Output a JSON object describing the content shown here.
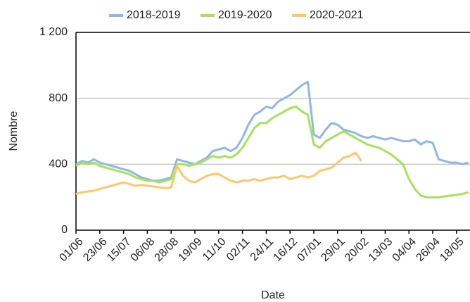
{
  "chart_data": {
    "type": "line",
    "x_label": "Date",
    "y_label": "Nombre",
    "categories": [
      "01/06",
      null,
      null,
      null,
      "23/06",
      null,
      null,
      null,
      "15/07",
      null,
      null,
      null,
      "06/08",
      null,
      null,
      null,
      "28/08",
      null,
      null,
      null,
      "19/09",
      null,
      null,
      null,
      "11/10",
      null,
      null,
      null,
      "02/11",
      null,
      null,
      null,
      "24/11",
      null,
      null,
      null,
      "16/12",
      null,
      null,
      null,
      "07/01",
      null,
      null,
      null,
      "29/01",
      null,
      null,
      null,
      "20/02",
      null,
      null,
      null,
      "13/03",
      null,
      null,
      null,
      "04/04",
      null,
      null,
      null,
      "26/04",
      null,
      null,
      null,
      "18/05",
      null,
      null
    ],
    "series": [
      {
        "name": "2018-2019",
        "color": "#8fb7ea",
        "values": [
          400,
          420,
          410,
          430,
          410,
          400,
          390,
          380,
          370,
          360,
          340,
          320,
          310,
          300,
          300,
          310,
          320,
          430,
          420,
          410,
          400,
          420,
          440,
          480,
          490,
          500,
          480,
          500,
          560,
          640,
          700,
          720,
          750,
          740,
          780,
          800,
          820,
          850,
          880,
          900,
          580,
          560,
          610,
          650,
          640,
          610,
          600,
          590,
          570,
          560,
          570,
          560,
          550,
          560,
          550,
          540,
          540,
          550,
          520,
          540,
          530,
          430,
          420,
          410,
          410,
          400,
          410
        ]
      },
      {
        "name": "2019-2020",
        "color": "#a6e25c",
        "values": [
          390,
          410,
          400,
          410,
          390,
          380,
          370,
          360,
          350,
          340,
          320,
          310,
          300,
          300,
          290,
          300,
          310,
          400,
          400,
          390,
          400,
          410,
          430,
          450,
          440,
          450,
          440,
          460,
          500,
          560,
          620,
          650,
          650,
          680,
          700,
          720,
          740,
          750,
          720,
          700,
          520,
          500,
          540,
          560,
          580,
          600,
          580,
          560,
          540,
          520,
          510,
          500,
          480,
          460,
          430,
          400,
          310,
          250,
          210,
          200,
          200,
          200,
          205,
          210,
          215,
          220,
          230
        ]
      },
      {
        "name": "2020-2021",
        "color": "#ffc66e",
        "values": [
          220,
          230,
          235,
          240,
          250,
          260,
          270,
          280,
          290,
          280,
          270,
          275,
          270,
          265,
          260,
          255,
          260,
          390,
          330,
          300,
          290,
          310,
          330,
          340,
          340,
          320,
          300,
          290,
          300,
          300,
          310,
          300,
          310,
          320,
          320,
          330,
          310,
          320,
          330,
          320,
          330,
          360,
          370,
          380,
          410,
          440,
          450,
          470,
          420,
          null,
          null,
          null,
          null,
          null,
          null,
          null,
          null,
          null,
          null,
          null,
          null,
          null,
          null,
          null,
          null,
          null,
          null
        ]
      }
    ],
    "ylim": [
      0,
      1200
    ],
    "yticks": [
      0,
      400,
      800,
      {
        "value": 1200,
        "label": "1 200"
      }
    ],
    "grid": true,
    "legend": "top"
  }
}
